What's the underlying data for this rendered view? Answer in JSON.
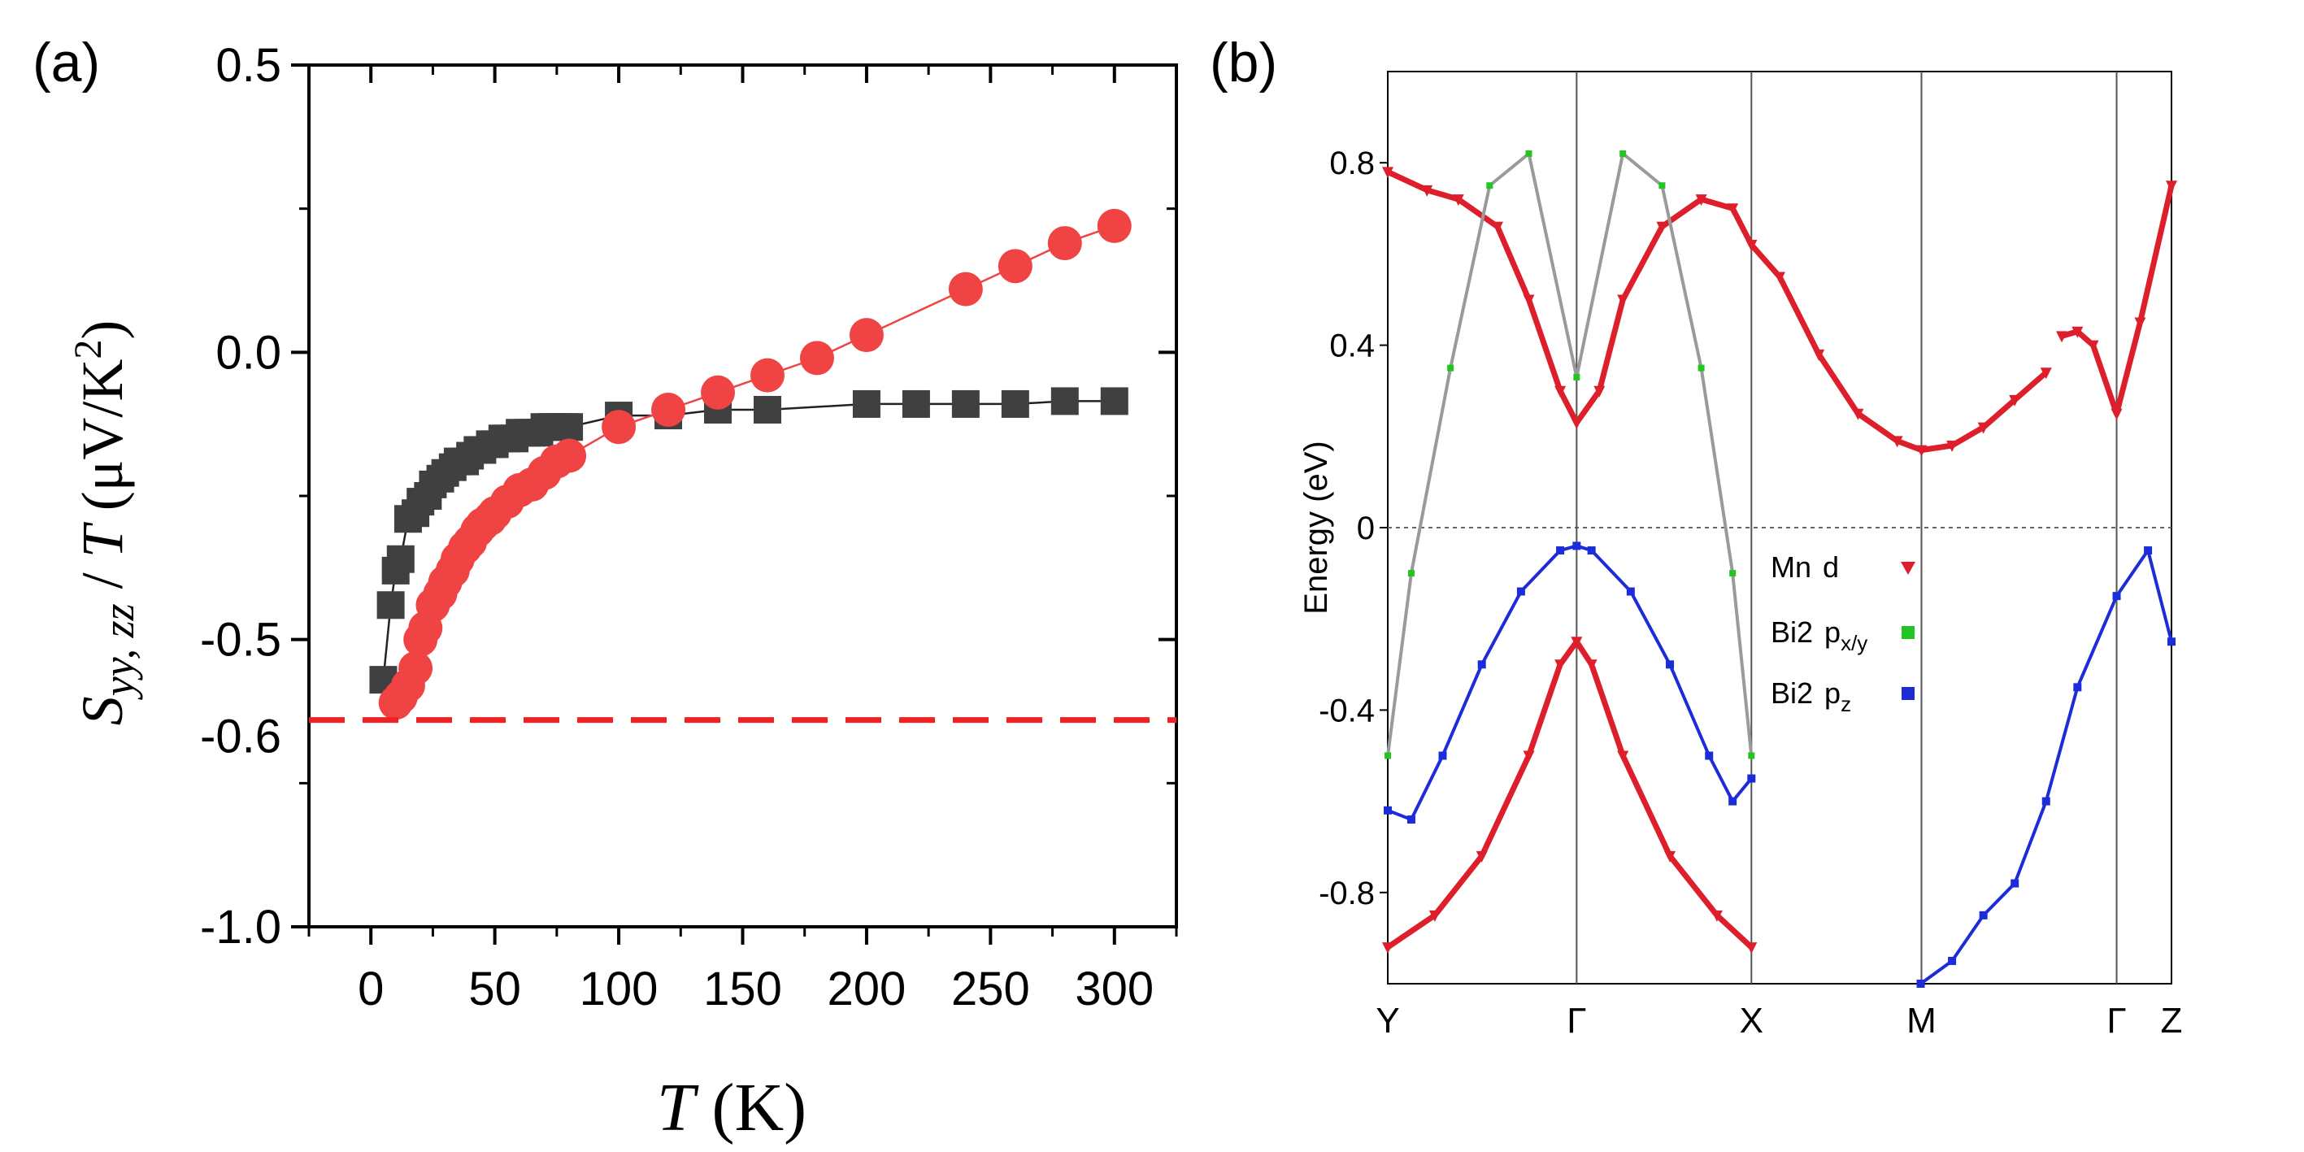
{
  "panel_a": {
    "label": "(a)",
    "chart_data": {
      "type": "scatter",
      "title": "",
      "xlabel_italic": "T",
      "xlabel_unit": " (K)",
      "ylabel_main": "S",
      "ylabel_sub": "yy, zz",
      "ylabel_rest": " / ",
      "ylabel_italic2": "T",
      "ylabel_unit": " (μV/K",
      "ylabel_sup": "2",
      "ylabel_close": ")",
      "xlim": [
        -25,
        325
      ],
      "ylim": [
        -1.0,
        0.5
      ],
      "xticks": [
        0,
        50,
        100,
        150,
        200,
        250,
        300
      ],
      "xtick_labels": [
        "0",
        "50",
        "100",
        "150",
        "200",
        "250",
        "300"
      ],
      "yticks": [
        -1.0,
        -0.5,
        0.0,
        0.5
      ],
      "ytick_labels": [
        "-1.0",
        "-0.5",
        "0.0",
        "0.5"
      ],
      "reference_line": {
        "y": -0.64,
        "label": "-0.6",
        "color": "#ee2222"
      },
      "series": [
        {
          "name": "S_yy/T",
          "marker": "square",
          "color": "#404040",
          "x": [
            5,
            8,
            10,
            12,
            15,
            18,
            20,
            23,
            25,
            28,
            30,
            33,
            35,
            38,
            40,
            43,
            45,
            48,
            50,
            53,
            55,
            58,
            60,
            63,
            65,
            68,
            70,
            73,
            75,
            78,
            80,
            100,
            120,
            140,
            160,
            200,
            220,
            240,
            260,
            280,
            300
          ],
          "y": [
            -0.57,
            -0.44,
            -0.38,
            -0.36,
            -0.29,
            -0.28,
            -0.26,
            -0.25,
            -0.23,
            -0.22,
            -0.21,
            -0.2,
            -0.19,
            -0.19,
            -0.18,
            -0.17,
            -0.17,
            -0.16,
            -0.16,
            -0.15,
            -0.15,
            -0.15,
            -0.14,
            -0.14,
            -0.14,
            -0.14,
            -0.13,
            -0.13,
            -0.13,
            -0.13,
            -0.13,
            -0.11,
            -0.11,
            -0.1,
            -0.1,
            -0.09,
            -0.09,
            -0.09,
            -0.09,
            -0.085,
            -0.085
          ]
        },
        {
          "name": "S_zz/T",
          "marker": "circle",
          "color": "#f04444",
          "x": [
            10,
            12,
            15,
            18,
            20,
            22,
            25,
            28,
            30,
            33,
            35,
            38,
            40,
            43,
            45,
            48,
            50,
            55,
            60,
            65,
            70,
            75,
            80,
            100,
            120,
            140,
            160,
            180,
            200,
            240,
            260,
            280,
            300
          ],
          "y": [
            -0.61,
            -0.6,
            -0.58,
            -0.55,
            -0.5,
            -0.48,
            -0.44,
            -0.42,
            -0.4,
            -0.38,
            -0.36,
            -0.34,
            -0.33,
            -0.31,
            -0.3,
            -0.29,
            -0.28,
            -0.26,
            -0.24,
            -0.23,
            -0.21,
            -0.19,
            -0.18,
            -0.13,
            -0.1,
            -0.07,
            -0.04,
            -0.01,
            0.03,
            0.11,
            0.15,
            0.19,
            0.22
          ]
        }
      ]
    }
  },
  "panel_b": {
    "label": "(b)",
    "chart_data": {
      "type": "line",
      "title": "",
      "ylabel": "Energy (eV)",
      "ylim": [
        -1.0,
        1.0
      ],
      "yticks": [
        -0.8,
        -0.4,
        0,
        0.4,
        0.8
      ],
      "ytick_labels": [
        "-0.8",
        "-0.4",
        "0",
        "0.4",
        "0.8"
      ],
      "kpath_positions": [
        0.0,
        0.241,
        0.464,
        0.681,
        0.93,
        1.0
      ],
      "kpath_labels": [
        "Y",
        "Γ",
        "X",
        "M",
        "Γ",
        "Z"
      ],
      "fermi_level": 0,
      "legend": [
        {
          "label_main": "Mn",
          "label_orb": "d",
          "label_sub": "",
          "color": "#dd1f2c",
          "marker": "triangle-down"
        },
        {
          "label_main": "Bi2",
          "label_orb": "p",
          "label_sub": "x/y",
          "color": "#22c522",
          "marker": "square"
        },
        {
          "label_main": "Bi2",
          "label_orb": "p",
          "label_sub": "z",
          "color": "#1b2cd8",
          "marker": "square"
        }
      ],
      "bands": [
        {
          "name": "upper-band-A",
          "k": [
            0.0,
            0.05,
            0.09,
            0.14,
            0.18,
            0.22,
            0.241,
            0.27,
            0.3,
            0.35,
            0.4,
            0.44,
            0.464
          ],
          "E": [
            0.78,
            0.74,
            0.72,
            0.66,
            0.5,
            0.3,
            0.23,
            0.3,
            0.5,
            0.66,
            0.72,
            0.7,
            0.62
          ]
        },
        {
          "name": "upper-band-B",
          "k": [
            0.464,
            0.5,
            0.55,
            0.6,
            0.65,
            0.681,
            0.72,
            0.76,
            0.8,
            0.84
          ],
          "E": [
            0.62,
            0.55,
            0.38,
            0.25,
            0.19,
            0.17,
            0.18,
            0.22,
            0.28,
            0.34
          ]
        },
        {
          "name": "upper-band-C",
          "k": [
            0.86,
            0.88,
            0.9,
            0.93,
            0.96,
            1.0
          ],
          "E": [
            0.42,
            0.43,
            0.4,
            0.25,
            0.45,
            0.75
          ]
        },
        {
          "name": "valence-blue",
          "k": [
            0.0,
            0.03,
            0.07,
            0.12,
            0.17,
            0.22,
            0.241,
            0.26,
            0.31,
            0.36,
            0.41,
            0.44,
            0.464
          ],
          "E": [
            -0.62,
            -0.64,
            -0.5,
            -0.3,
            -0.14,
            -0.05,
            -0.04,
            -0.05,
            -0.14,
            -0.3,
            -0.5,
            -0.6,
            -0.55
          ]
        },
        {
          "name": "valence-red",
          "k": [
            0.0,
            0.06,
            0.12,
            0.18,
            0.22,
            0.241,
            0.26,
            0.3,
            0.36,
            0.42,
            0.464
          ],
          "E": [
            -0.92,
            -0.85,
            -0.72,
            -0.5,
            -0.3,
            -0.25,
            -0.3,
            -0.5,
            -0.72,
            -0.85,
            -0.92
          ]
        },
        {
          "name": "dispersive-grey",
          "k": [
            0.0,
            0.03,
            0.08,
            0.13,
            0.18,
            0.241,
            0.3,
            0.35,
            0.4,
            0.44,
            0.464
          ],
          "E": [
            -0.5,
            -0.1,
            0.35,
            0.75,
            0.82,
            0.33,
            0.82,
            0.75,
            0.35,
            -0.1,
            -0.5
          ]
        },
        {
          "name": "blue-M-Gamma",
          "k": [
            0.68,
            0.72,
            0.76,
            0.8,
            0.84,
            0.88,
            0.93,
            0.97,
            1.0
          ],
          "E": [
            -1.0,
            -0.95,
            -0.85,
            -0.78,
            -0.6,
            -0.35,
            -0.15,
            -0.05,
            -0.25
          ]
        }
      ]
    }
  }
}
